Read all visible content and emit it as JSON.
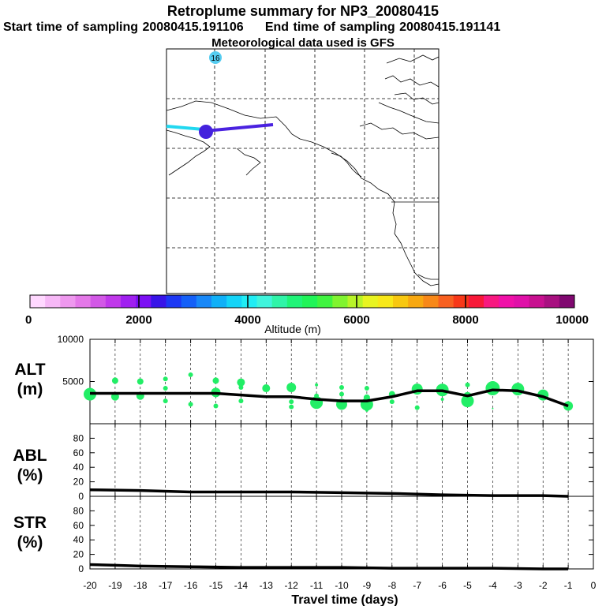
{
  "header": {
    "title": "Retroplume summary for NP3_20080415",
    "sampling": "Start time of sampling 20080415.191106     End time of sampling 20080415.191141",
    "met": "Meteorological data used is GFS"
  },
  "map": {
    "label": "16",
    "colors": {
      "trajectory": "#4a22e0",
      "tail": "#22d8f0",
      "marker": "#4422dd",
      "label_dot": "#55ccf0"
    }
  },
  "colorbar": {
    "title": "Altitude (m)",
    "ticks": [
      "0",
      "2000",
      "4000",
      "6000",
      "8000",
      "10000"
    ],
    "colors": [
      "#ffd8ff",
      "#f6b8f6",
      "#ee98ee",
      "#e478e8",
      "#d258e6",
      "#c038ea",
      "#a020f0",
      "#7c10f4",
      "#3814e8",
      "#1c38f4",
      "#1460f8",
      "#1888f8",
      "#10b0f8",
      "#14d4f8",
      "#20ecf4",
      "#40f4dc",
      "#30f4a8",
      "#20f478",
      "#20f458",
      "#40f440",
      "#80f430",
      "#b8f428",
      "#e8f420",
      "#f8e818",
      "#f8c810",
      "#f8a810",
      "#f88818",
      "#f86020",
      "#f83818",
      "#f81838",
      "#f81880",
      "#f010a8",
      "#e010a8",
      "#c81090",
      "#a81080",
      "#800870"
    ]
  },
  "chart_data": [
    {
      "type": "line",
      "ylabel": "ALT\n(m)",
      "ylabel_lines": [
        "ALT",
        "(m)"
      ],
      "xlabel": "Travel time (days)",
      "x_ticks": [
        "-20",
        "-19",
        "-18",
        "-17",
        "-16",
        "-15",
        "-14",
        "-13",
        "-12",
        "-11",
        "-10",
        "-9",
        "-8",
        "-7",
        "-6",
        "-5",
        "-4",
        "-3",
        "-2",
        "-1",
        "0"
      ],
      "y_ticks": [
        "10000",
        "5000"
      ],
      "ylim": [
        0,
        10000
      ],
      "xlim": [
        -20,
        0
      ],
      "marker_color": "#22ee66",
      "line": {
        "x": [
          -20,
          -19,
          -18,
          -17,
          -16,
          -15,
          -14,
          -13,
          -12,
          -11,
          -10,
          -9,
          -8,
          -7,
          -6,
          -5,
          -4,
          -3,
          -2,
          -1
        ],
        "y": [
          3600,
          3600,
          3600,
          3600,
          3600,
          3600,
          3400,
          3200,
          3200,
          2900,
          2700,
          2700,
          3200,
          3900,
          3900,
          3300,
          4000,
          3900,
          3200,
          2100
        ]
      },
      "dots": [
        {
          "x": -20,
          "y": 3500,
          "s": 8
        },
        {
          "x": -19,
          "y": 5100,
          "s": 4
        },
        {
          "x": -19,
          "y": 3200,
          "s": 5
        },
        {
          "x": -18,
          "y": 5000,
          "s": 4
        },
        {
          "x": -18,
          "y": 3300,
          "s": 5
        },
        {
          "x": -17,
          "y": 5300,
          "s": 3
        },
        {
          "x": -17,
          "y": 4200,
          "s": 3
        },
        {
          "x": -17,
          "y": 2700,
          "s": 3
        },
        {
          "x": -16,
          "y": 5800,
          "s": 3
        },
        {
          "x": -16,
          "y": 2300,
          "s": 3
        },
        {
          "x": -15,
          "y": 5100,
          "s": 4
        },
        {
          "x": -15,
          "y": 3700,
          "s": 6
        },
        {
          "x": -15,
          "y": 2100,
          "s": 3
        },
        {
          "x": -14,
          "y": 4900,
          "s": 5
        },
        {
          "x": -14,
          "y": 4300,
          "s": 3
        },
        {
          "x": -14,
          "y": 2700,
          "s": 3
        },
        {
          "x": -13,
          "y": 4200,
          "s": 5
        },
        {
          "x": -12,
          "y": 4300,
          "s": 6
        },
        {
          "x": -12,
          "y": 2600,
          "s": 3
        },
        {
          "x": -12,
          "y": 2000,
          "s": 3
        },
        {
          "x": -11,
          "y": 4600,
          "s": 2
        },
        {
          "x": -11,
          "y": 3300,
          "s": 3
        },
        {
          "x": -11,
          "y": 2500,
          "s": 8
        },
        {
          "x": -10,
          "y": 4300,
          "s": 3
        },
        {
          "x": -10,
          "y": 3500,
          "s": 3
        },
        {
          "x": -10,
          "y": 2300,
          "s": 7
        },
        {
          "x": -9,
          "y": 4200,
          "s": 3
        },
        {
          "x": -9,
          "y": 3100,
          "s": 4
        },
        {
          "x": -9,
          "y": 2300,
          "s": 8
        },
        {
          "x": -9,
          "y": 1600,
          "s": 2
        },
        {
          "x": -8,
          "y": 3500,
          "s": 4
        },
        {
          "x": -8,
          "y": 2600,
          "s": 3
        },
        {
          "x": -7,
          "y": 4100,
          "s": 7
        },
        {
          "x": -7,
          "y": 1900,
          "s": 3
        },
        {
          "x": -6,
          "y": 4000,
          "s": 8
        },
        {
          "x": -6,
          "y": 2900,
          "s": 2
        },
        {
          "x": -5,
          "y": 4600,
          "s": 3
        },
        {
          "x": -5,
          "y": 3300,
          "s": 5
        },
        {
          "x": -5,
          "y": 2700,
          "s": 8
        },
        {
          "x": -4,
          "y": 4200,
          "s": 9
        },
        {
          "x": -4,
          "y": 1800,
          "s": 1
        },
        {
          "x": -3,
          "y": 4100,
          "s": 8
        },
        {
          "x": -2,
          "y": 3400,
          "s": 7
        },
        {
          "x": -1,
          "y": 2100,
          "s": 6
        }
      ]
    },
    {
      "type": "line",
      "ylabel": "ABL\n(%)",
      "ylabel_lines": [
        "ABL",
        "(%)"
      ],
      "y_ticks": [
        "80",
        "60",
        "40",
        "20",
        "0"
      ],
      "ylim": [
        0,
        100
      ],
      "xlim": [
        -20,
        0
      ],
      "line": {
        "x": [
          -20,
          -18,
          -16,
          -14,
          -12,
          -10,
          -8,
          -6,
          -4,
          -2,
          -1
        ],
        "y": [
          9,
          8,
          6,
          6,
          6,
          5,
          4,
          2,
          1,
          1,
          0
        ]
      }
    },
    {
      "type": "line",
      "ylabel": "STR\n(%)",
      "ylabel_lines": [
        "STR",
        "(%)"
      ],
      "y_ticks": [
        "80",
        "60",
        "40",
        "20",
        "0"
      ],
      "ylim": [
        0,
        100
      ],
      "xlim": [
        -20,
        0
      ],
      "line": {
        "x": [
          -20,
          -19,
          -18,
          -16,
          -14,
          -12,
          -10,
          -8,
          -6,
          -4,
          -2,
          -1
        ],
        "y": [
          6,
          5,
          4,
          3,
          2,
          2,
          2,
          1,
          1,
          1,
          0,
          0
        ]
      }
    }
  ]
}
